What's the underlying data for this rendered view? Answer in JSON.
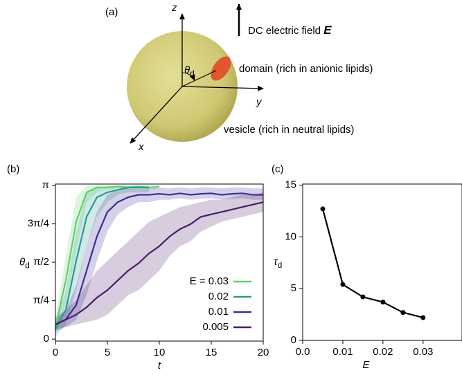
{
  "diagram": {
    "panel": "(a)",
    "z": "z",
    "y": "y",
    "x": "x",
    "field": "DC electric field ",
    "field_symbol": "E",
    "theta": {
      "symbol": "θ",
      "subscript": "d"
    },
    "domain": "domain (rich in anionic lipids)",
    "vesicle": "vesicle (rich in neutral lipids)"
  },
  "chart_data": [
    {
      "type": "line",
      "panel": "(b)",
      "x_label": "t",
      "y_label": {
        "symbol": "θ",
        "subscript": "d"
      },
      "xlim": [
        0,
        20
      ],
      "xticks": [
        0,
        5,
        10,
        15,
        20
      ],
      "ylim": [
        -0.04,
        3.17
      ],
      "yticks": [
        0,
        {
          "value": 0.785,
          "label": "π/4"
        },
        {
          "value": 1.571,
          "label": "π/2"
        },
        {
          "value": 2.356,
          "label": "3π/4"
        },
        {
          "value": 3.142,
          "label": "π"
        }
      ],
      "series": [
        {
          "name": "E = 0.03",
          "color": "#5fd068",
          "x": [
            0,
            1,
            2,
            3,
            4,
            5,
            6,
            7,
            8,
            9,
            10
          ],
          "values": [
            0.25,
            1.2,
            2.4,
            3.0,
            3.1,
            3.1,
            3.12,
            3.1,
            3.12,
            3.1,
            3.12
          ],
          "lower": [
            0.1,
            0.7,
            1.8,
            2.8,
            3.0,
            3.05,
            3.08,
            3.05,
            3.08,
            3.05,
            3.08
          ],
          "upper": [
            0.4,
            1.7,
            2.9,
            3.14,
            3.14,
            3.14,
            3.14,
            3.14,
            3.14,
            3.14,
            3.14
          ]
        },
        {
          "name": "0.02",
          "color": "#2a9a8e",
          "x": [
            0,
            1,
            2,
            3,
            4,
            5,
            6,
            7,
            8,
            9
          ],
          "values": [
            0.2,
            0.6,
            1.6,
            2.5,
            2.9,
            3.0,
            3.05,
            3.1,
            3.1,
            3.1
          ],
          "lower": [
            0.05,
            0.3,
            1.0,
            1.9,
            2.5,
            2.8,
            2.95,
            3.0,
            3.0,
            3.0
          ],
          "upper": [
            0.35,
            1.0,
            2.2,
            3.0,
            3.1,
            3.12,
            3.14,
            3.14,
            3.14,
            3.14
          ]
        },
        {
          "name": "0.01",
          "color": "#3b2d96",
          "x": [
            0,
            1,
            2,
            3,
            4,
            5,
            6,
            7,
            8,
            9,
            10,
            11,
            12,
            13,
            14,
            15,
            16,
            17,
            18,
            19,
            20
          ],
          "values": [
            0.3,
            0.4,
            0.7,
            1.4,
            2.1,
            2.6,
            2.8,
            2.9,
            2.95,
            2.95,
            2.97,
            2.95,
            2.98,
            2.95,
            2.97,
            2.98,
            2.95,
            2.97,
            2.98,
            2.95,
            2.95
          ],
          "lower": [
            0.15,
            0.25,
            0.4,
            0.9,
            1.6,
            2.2,
            2.55,
            2.7,
            2.8,
            2.8,
            2.85,
            2.85,
            2.88,
            2.85,
            2.87,
            2.88,
            2.85,
            2.87,
            2.88,
            2.85,
            2.85
          ],
          "upper": [
            0.45,
            0.6,
            1.1,
            1.9,
            2.6,
            2.95,
            3.05,
            3.08,
            3.08,
            3.08,
            3.1,
            3.08,
            3.1,
            3.08,
            3.1,
            3.1,
            3.08,
            3.1,
            3.1,
            3.08,
            3.08
          ]
        },
        {
          "name": "0.005",
          "color": "#4a1a6a",
          "x": [
            0,
            1,
            2,
            3,
            4,
            5,
            6,
            7,
            8,
            9,
            10,
            11,
            12,
            13,
            14,
            15,
            16,
            17,
            18,
            19,
            20
          ],
          "values": [
            0.3,
            0.4,
            0.5,
            0.65,
            0.85,
            1.0,
            1.2,
            1.4,
            1.55,
            1.75,
            1.9,
            2.1,
            2.25,
            2.35,
            2.5,
            2.55,
            2.6,
            2.65,
            2.7,
            2.75,
            2.8
          ],
          "lower": [
            0.2,
            0.25,
            0.3,
            0.35,
            0.4,
            0.5,
            0.7,
            0.9,
            1.0,
            1.2,
            1.4,
            1.7,
            1.9,
            2.0,
            2.2,
            2.3,
            2.4,
            2.45,
            2.5,
            2.55,
            2.6
          ],
          "upper": [
            0.4,
            0.6,
            0.8,
            1.1,
            1.4,
            1.6,
            1.8,
            2.0,
            2.2,
            2.4,
            2.5,
            2.6,
            2.7,
            2.75,
            2.8,
            2.85,
            2.85,
            2.9,
            2.95,
            2.95,
            3.0
          ]
        }
      ]
    },
    {
      "type": "line",
      "panel": "(c)",
      "x_label": "E",
      "y_label": {
        "symbol": "τ",
        "subscript": "d"
      },
      "markers": true,
      "xlim": [
        0,
        0.0397
      ],
      "xticks": [
        {
          "value": 0,
          "label": "0.0"
        },
        0.01,
        0.02,
        0.03
      ],
      "ylim": [
        0,
        15.1
      ],
      "yticks": [
        0,
        5,
        10,
        15
      ],
      "series": [
        {
          "color": "#000000",
          "x": [
            0.005,
            0.01,
            0.015,
            0.02,
            0.025,
            0.03
          ],
          "values": [
            12.7,
            5.4,
            4.2,
            3.7,
            2.7,
            2.2
          ]
        }
      ]
    }
  ]
}
